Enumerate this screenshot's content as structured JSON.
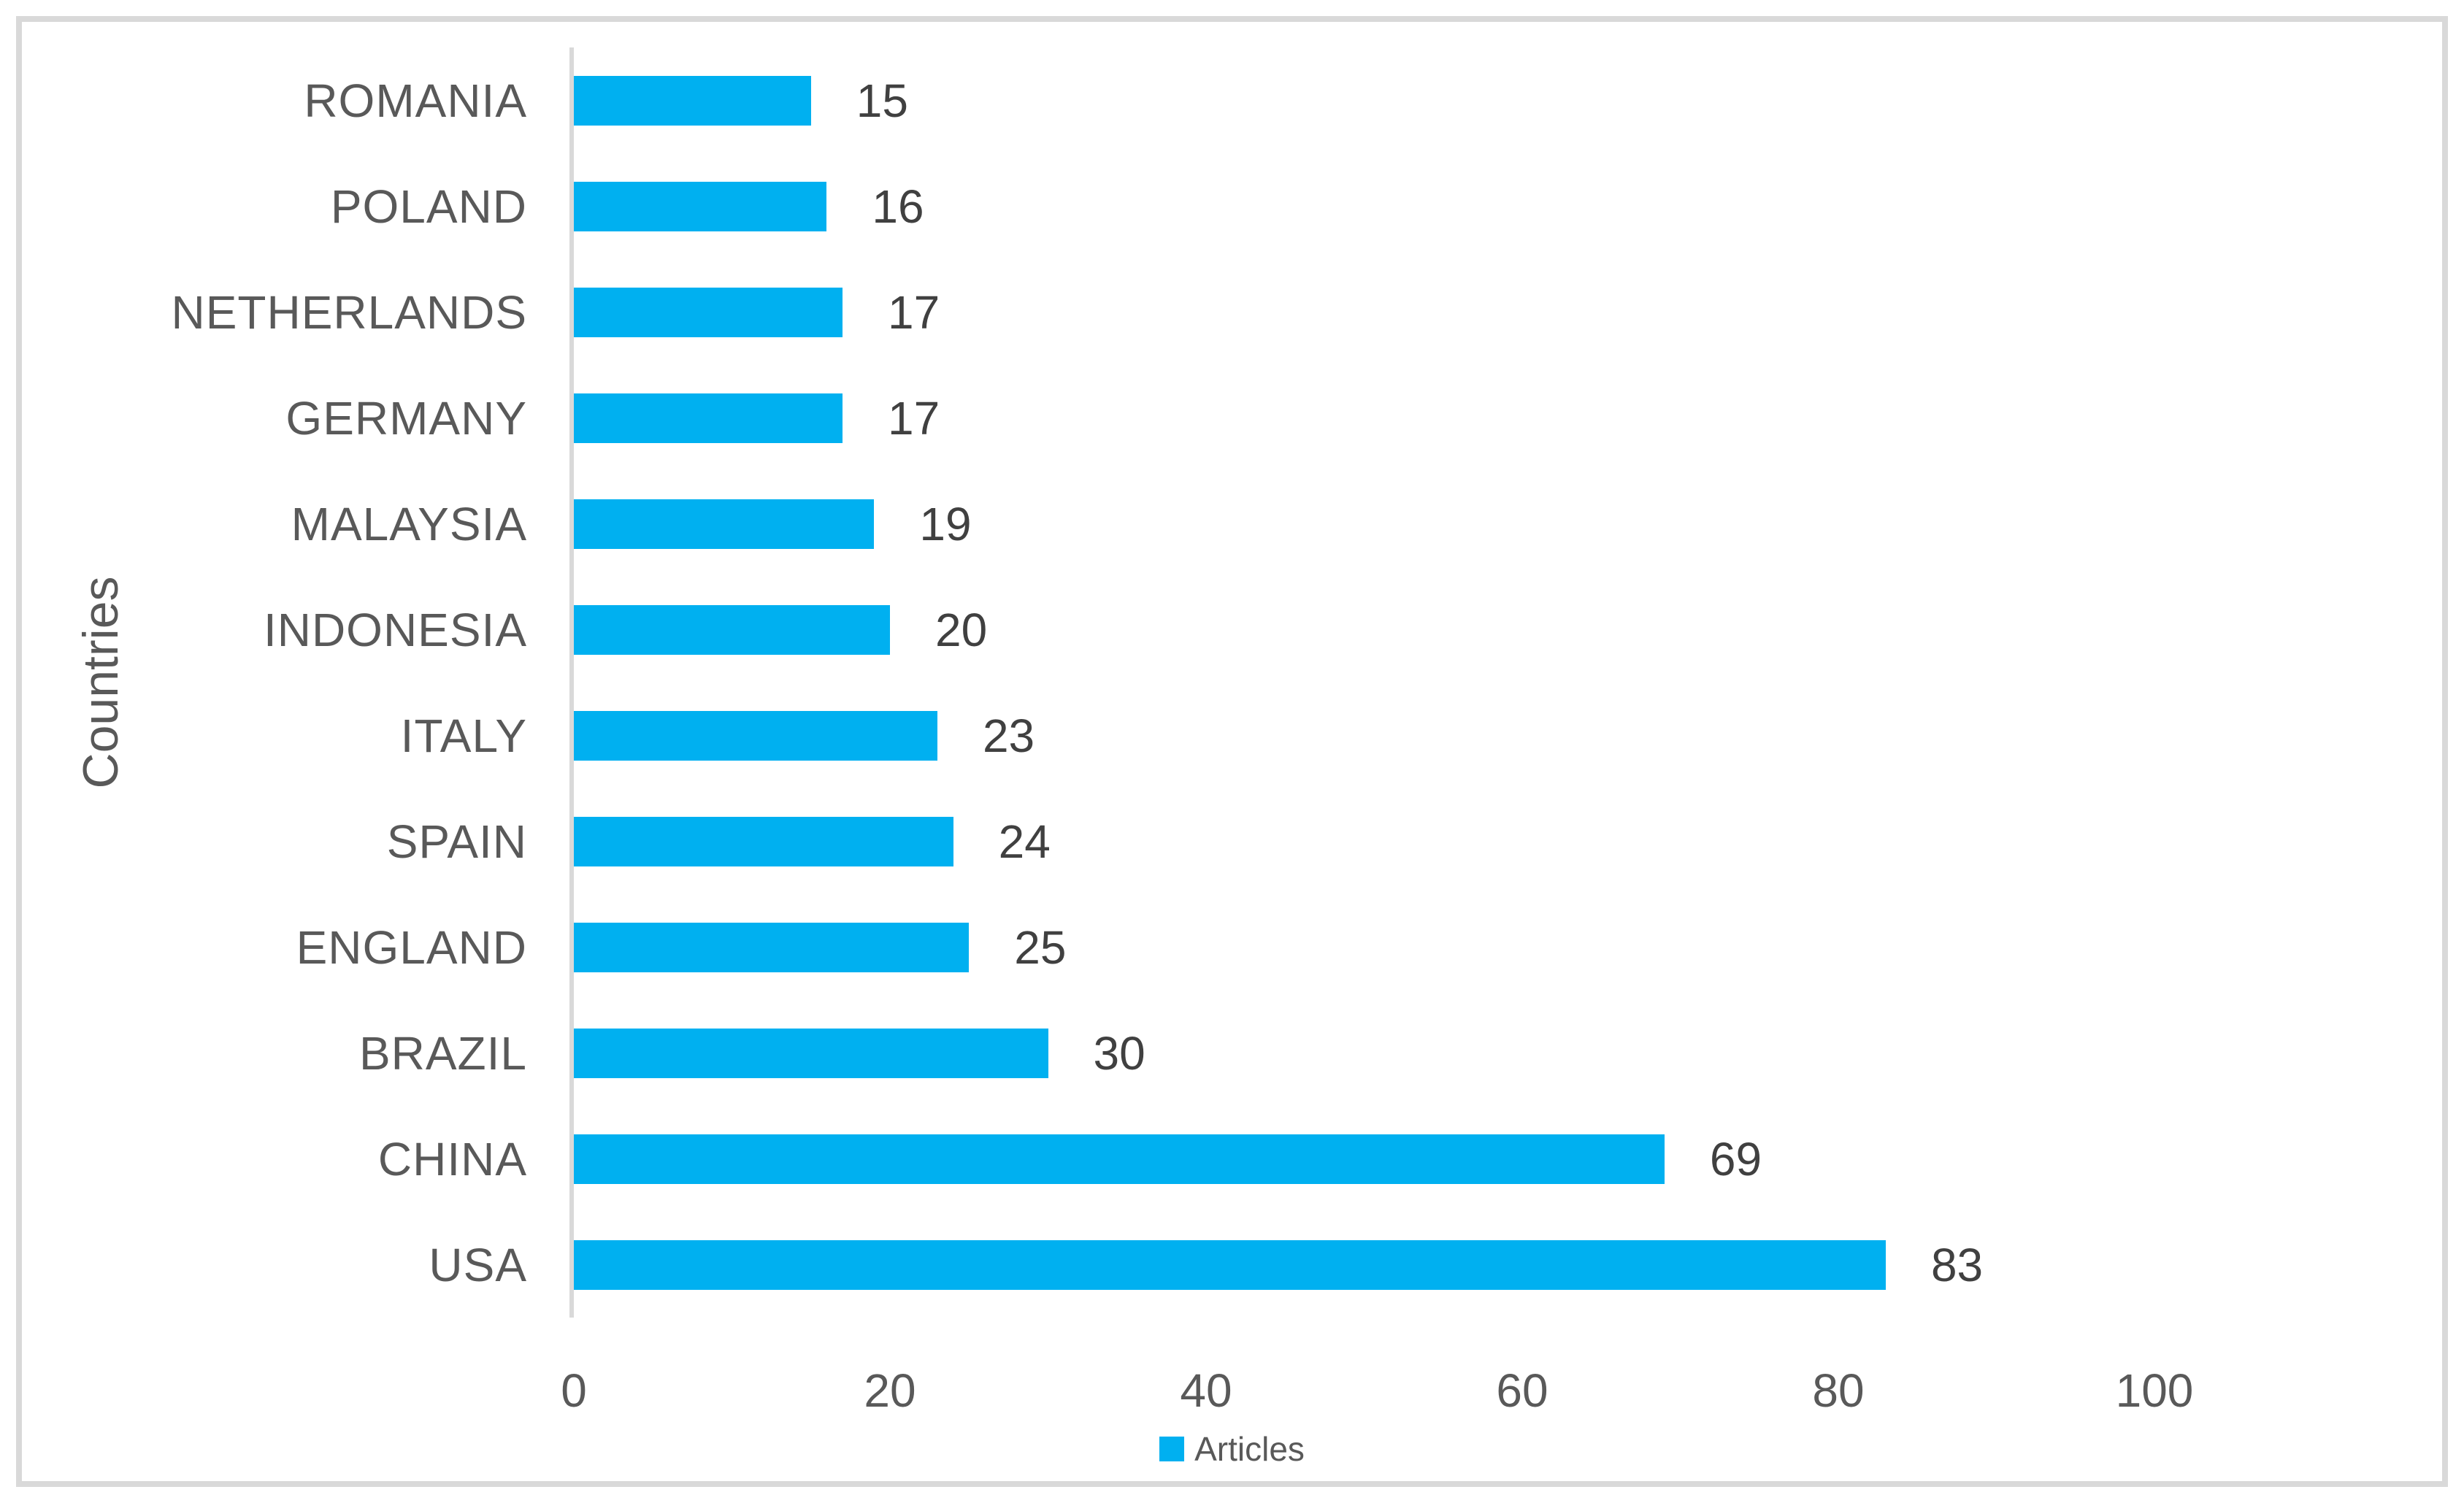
{
  "chart_data": {
    "type": "bar",
    "orientation": "horizontal",
    "title": "",
    "xlabel": "",
    "ylabel": "Countries",
    "categories": [
      "ROMANIA",
      "POLAND",
      "NETHERLANDS",
      "GERMANY",
      "MALAYSIA",
      "INDONESIA",
      "ITALY",
      "SPAIN",
      "ENGLAND",
      "BRAZIL",
      "CHINA",
      "USA"
    ],
    "series": [
      {
        "name": "Articles",
        "values": [
          15,
          16,
          17,
          17,
          19,
          20,
          23,
          24,
          25,
          30,
          69,
          83
        ]
      }
    ],
    "data_labels": [
      "15",
      "16",
      "17",
      "17",
      "19",
      "20",
      "23",
      "24",
      "25",
      "30",
      "69",
      "83"
    ],
    "xlim": [
      0,
      100
    ],
    "xticks": [
      0,
      20,
      40,
      60,
      80,
      100
    ],
    "grid": false,
    "legend_position": "bottom",
    "bar_color": "#00B0F0"
  },
  "colors": {
    "bar": "#00B0F0",
    "axis_line": "#D9D9D9",
    "frame_border": "#D9D9D9",
    "label_text": "#595959",
    "value_text": "#404040",
    "background": "#FFFFFF"
  }
}
